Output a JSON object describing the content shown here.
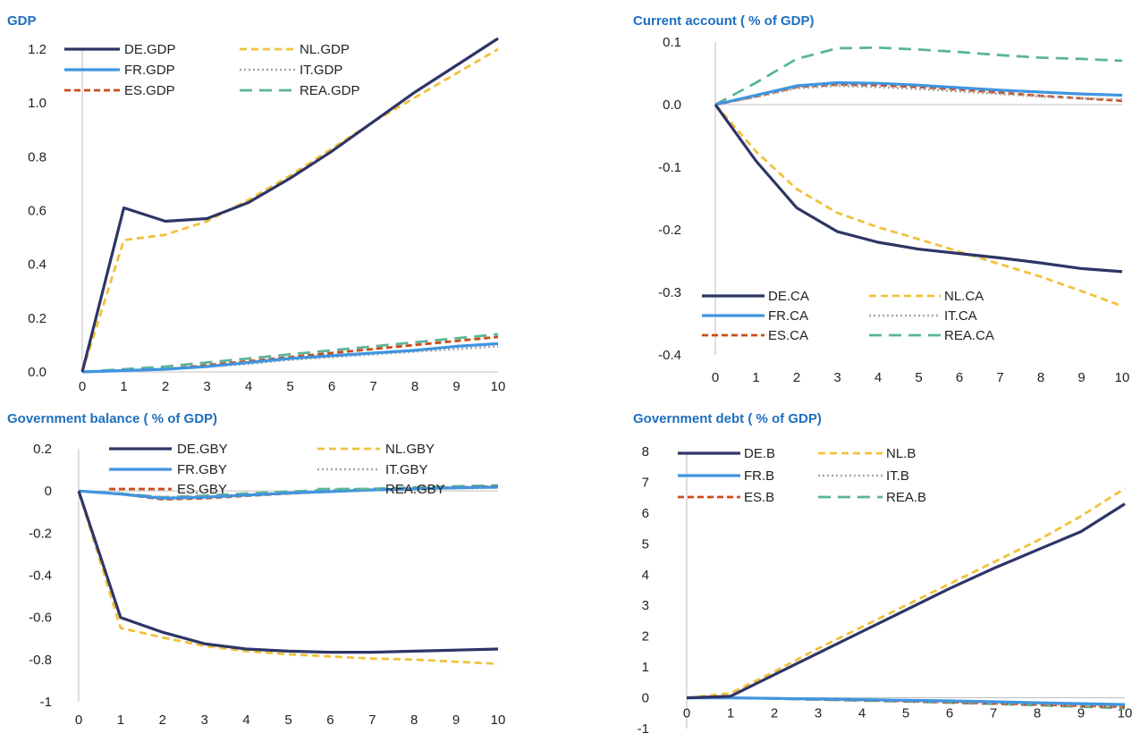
{
  "colors": {
    "title": "#1f6fbf",
    "axis": "#bfbfbf"
  },
  "series_styles": [
    {
      "color": "#2e3566",
      "dash": "solid",
      "width": 3.2
    },
    {
      "color": "#f0c23a",
      "dash": "8,5",
      "width": 2.8
    },
    {
      "color": "#3f95e0",
      "dash": "solid",
      "width": 3.2
    },
    {
      "color": "#a6a6a6",
      "dash": "2,3",
      "width": 2.6
    },
    {
      "color": "#cc4b1a",
      "dash": "7,4",
      "width": 2.8
    },
    {
      "color": "#5ab598",
      "dash": "14,8",
      "width": 2.8
    }
  ],
  "chart_data": [
    {
      "type": "line",
      "title": "GDP",
      "x": [
        0,
        1,
        2,
        3,
        4,
        5,
        6,
        7,
        8,
        9,
        10
      ],
      "ylim": [
        0,
        1.2
      ],
      "yticks": [
        0.0,
        0.2,
        0.4,
        0.6,
        0.8,
        1.0,
        1.2
      ],
      "ytick_labels": [
        "0.0",
        "0.2",
        "0.4",
        "0.6",
        "0.8",
        "1.0",
        "1.2"
      ],
      "zero_line": 0,
      "series": [
        {
          "name": "DE.GDP",
          "values": [
            0.0,
            0.61,
            0.56,
            0.57,
            0.63,
            0.72,
            0.82,
            0.93,
            1.04,
            1.14,
            1.24
          ]
        },
        {
          "name": "NL.GDP",
          "values": [
            0.0,
            0.49,
            0.51,
            0.56,
            0.64,
            0.73,
            0.83,
            0.93,
            1.02,
            1.11,
            1.2
          ]
        },
        {
          "name": "FR.GDP",
          "values": [
            0.0,
            0.005,
            0.01,
            0.02,
            0.035,
            0.05,
            0.06,
            0.07,
            0.08,
            0.095,
            0.105
          ]
        },
        {
          "name": "IT.GDP",
          "values": [
            0.0,
            0.005,
            0.01,
            0.02,
            0.03,
            0.045,
            0.055,
            0.065,
            0.075,
            0.085,
            0.095
          ]
        },
        {
          "name": "ES.GDP",
          "values": [
            0.0,
            0.005,
            0.01,
            0.025,
            0.04,
            0.055,
            0.07,
            0.085,
            0.1,
            0.115,
            0.13
          ]
        },
        {
          "name": "REA.GDP",
          "values": [
            0.0,
            0.01,
            0.02,
            0.035,
            0.05,
            0.065,
            0.08,
            0.095,
            0.11,
            0.125,
            0.14
          ]
        }
      ]
    },
    {
      "type": "line",
      "title": "Current account ( % of GDP)",
      "x": [
        0,
        1,
        2,
        3,
        4,
        5,
        6,
        7,
        8,
        9,
        10
      ],
      "ylim": [
        -0.4,
        0.1
      ],
      "yticks": [
        -0.4,
        -0.3,
        -0.2,
        -0.1,
        0.0,
        0.1
      ],
      "ytick_labels": [
        "-0.4",
        "-0.3",
        "-0.2",
        "-0.1",
        "0.0",
        "0.1"
      ],
      "zero_line": 0,
      "series": [
        {
          "name": "DE.CA",
          "values": [
            0.0,
            -0.09,
            -0.165,
            -0.203,
            -0.22,
            -0.231,
            -0.238,
            -0.245,
            -0.253,
            -0.262,
            -0.267
          ]
        },
        {
          "name": "NL.CA",
          "values": [
            0.0,
            -0.075,
            -0.135,
            -0.173,
            -0.196,
            -0.215,
            -0.235,
            -0.255,
            -0.275,
            -0.298,
            -0.322
          ]
        },
        {
          "name": "FR.CA",
          "values": [
            0.0,
            0.015,
            0.03,
            0.035,
            0.034,
            0.031,
            0.027,
            0.023,
            0.02,
            0.017,
            0.015
          ]
        },
        {
          "name": "IT.CA",
          "values": [
            0.0,
            0.012,
            0.026,
            0.03,
            0.028,
            0.025,
            0.021,
            0.017,
            0.013,
            0.01,
            0.008
          ]
        },
        {
          "name": "ES.CA",
          "values": [
            0.0,
            0.013,
            0.028,
            0.032,
            0.031,
            0.028,
            0.024,
            0.019,
            0.014,
            0.01,
            0.006
          ]
        },
        {
          "name": "REA.CA",
          "values": [
            0.0,
            0.035,
            0.073,
            0.09,
            0.091,
            0.088,
            0.084,
            0.079,
            0.075,
            0.073,
            0.07
          ]
        }
      ]
    },
    {
      "type": "line",
      "title": "Government balance ( % of GDP)",
      "x": [
        0,
        1,
        2,
        3,
        4,
        5,
        6,
        7,
        8,
        9,
        10
      ],
      "ylim": [
        -1.0,
        0.2
      ],
      "yticks": [
        -1.0,
        -0.8,
        -0.6,
        -0.4,
        -0.2,
        0.0,
        0.2
      ],
      "ytick_labels": [
        "-1",
        "-0.8",
        "-0.6",
        "-0.4",
        "-0.2",
        "0",
        "0.2"
      ],
      "zero_line": 0,
      "series": [
        {
          "name": "DE.GBY",
          "values": [
            0.0,
            -0.6,
            -0.67,
            -0.725,
            -0.75,
            -0.76,
            -0.765,
            -0.765,
            -0.76,
            -0.755,
            -0.75
          ]
        },
        {
          "name": "NL.GBY",
          "values": [
            0.0,
            -0.65,
            -0.695,
            -0.735,
            -0.76,
            -0.775,
            -0.785,
            -0.795,
            -0.8,
            -0.81,
            -0.82
          ]
        },
        {
          "name": "FR.GBY",
          "values": [
            0.0,
            -0.015,
            -0.035,
            -0.03,
            -0.02,
            -0.01,
            -0.003,
            0.005,
            0.01,
            0.015,
            0.018
          ]
        },
        {
          "name": "IT.GBY",
          "values": [
            0.0,
            -0.012,
            -0.03,
            -0.025,
            -0.017,
            -0.008,
            0.0,
            0.005,
            0.01,
            0.012,
            0.015
          ]
        },
        {
          "name": "ES.GBY",
          "values": [
            0.0,
            -0.014,
            -0.04,
            -0.035,
            -0.023,
            -0.012,
            -0.003,
            0.005,
            0.012,
            0.017,
            0.022
          ]
        },
        {
          "name": "REA.GBY",
          "values": [
            0.0,
            -0.012,
            -0.03,
            -0.022,
            -0.012,
            -0.003,
            0.005,
            0.01,
            0.017,
            0.022,
            0.026
          ]
        }
      ]
    },
    {
      "type": "line",
      "title": "Government debt ( % of GDP)",
      "x": [
        0,
        1,
        2,
        3,
        4,
        5,
        6,
        7,
        8,
        9,
        10
      ],
      "ylim": [
        -1,
        8
      ],
      "yticks": [
        -1,
        0,
        1,
        2,
        3,
        4,
        5,
        6,
        7,
        8
      ],
      "ytick_labels": [
        "-1",
        "0",
        "1",
        "2",
        "3",
        "4",
        "5",
        "6",
        "7",
        "8"
      ],
      "zero_line": 0,
      "series": [
        {
          "name": "DE.B",
          "values": [
            0.0,
            0.05,
            0.75,
            1.45,
            2.15,
            2.85,
            3.55,
            4.2,
            4.8,
            5.4,
            6.3
          ]
        },
        {
          "name": "NL.B",
          "values": [
            0.0,
            0.15,
            0.85,
            1.6,
            2.3,
            3.0,
            3.7,
            4.4,
            5.1,
            5.9,
            6.8
          ]
        },
        {
          "name": "FR.B",
          "values": [
            0.0,
            0.0,
            -0.02,
            -0.04,
            -0.06,
            -0.08,
            -0.1,
            -0.13,
            -0.16,
            -0.19,
            -0.22
          ]
        },
        {
          "name": "IT.B",
          "values": [
            0.0,
            0.0,
            -0.02,
            -0.04,
            -0.07,
            -0.1,
            -0.13,
            -0.16,
            -0.2,
            -0.24,
            -0.28
          ]
        },
        {
          "name": "ES.B",
          "values": [
            0.0,
            0.0,
            -0.02,
            -0.05,
            -0.08,
            -0.11,
            -0.14,
            -0.18,
            -0.22,
            -0.26,
            -0.3
          ]
        },
        {
          "name": "REA.B",
          "values": [
            0.0,
            0.0,
            -0.03,
            -0.06,
            -0.09,
            -0.12,
            -0.16,
            -0.2,
            -0.24,
            -0.29,
            -0.34
          ]
        }
      ]
    }
  ]
}
